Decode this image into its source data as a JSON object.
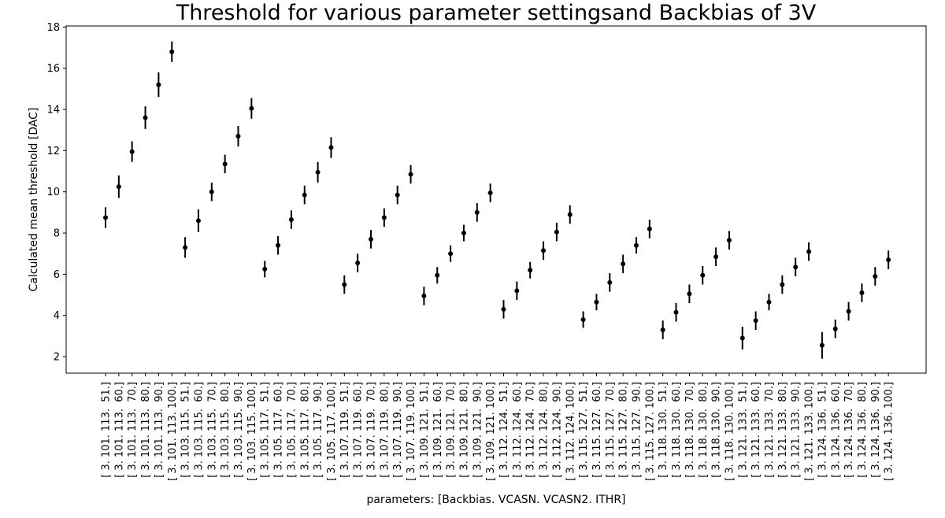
{
  "chart_data": {
    "type": "scatter",
    "title": "Threshold for various parameter settingsand Backbias of 3V",
    "xlabel": "parameters: [Backbias. VCASN. VCASN2. ITHR]",
    "ylabel": "Calculated mean threshold [DAC]",
    "ylim": [
      1.2,
      18.05
    ],
    "yticks": [
      2,
      4,
      6,
      8,
      10,
      12,
      14,
      16,
      18
    ],
    "grid": false,
    "categories": [
      "[ 3. 101. 113.  51.]",
      "[ 3. 101. 113.  60.]",
      "[ 3. 101. 113.  70.]",
      "[ 3. 101. 113.  80.]",
      "[ 3. 101. 113.  90.]",
      "[ 3. 101. 113. 100.]",
      "[ 3. 103. 115.  51.]",
      "[ 3. 103. 115.  60.]",
      "[ 3. 103. 115.  70.]",
      "[ 3. 103. 115.  80.]",
      "[ 3. 103. 115.  90.]",
      "[ 3. 103. 115. 100.]",
      "[ 3. 105. 117.  51.]",
      "[ 3. 105. 117.  60.]",
      "[ 3. 105. 117.  70.]",
      "[ 3. 105. 117.  80.]",
      "[ 3. 105. 117.  90.]",
      "[ 3. 105. 117. 100.]",
      "[ 3. 107. 119.  51.]",
      "[ 3. 107. 119.  60.]",
      "[ 3. 107. 119.  70.]",
      "[ 3. 107. 119.  80.]",
      "[ 3. 107. 119.  90.]",
      "[ 3. 107. 119. 100.]",
      "[ 3. 109. 121.  51.]",
      "[ 3. 109. 121.  60.]",
      "[ 3. 109. 121.  70.]",
      "[ 3. 109. 121.  80.]",
      "[ 3. 109. 121.  90.]",
      "[ 3. 109. 121. 100.]",
      "[ 3. 112. 124.  51.]",
      "[ 3. 112. 124.  60.]",
      "[ 3. 112. 124.  70.]",
      "[ 3. 112. 124.  80.]",
      "[ 3. 112. 124.  90.]",
      "[ 3. 112. 124. 100.]",
      "[ 3. 115. 127.  51.]",
      "[ 3. 115. 127.  60.]",
      "[ 3. 115. 127.  70.]",
      "[ 3. 115. 127.  80.]",
      "[ 3. 115. 127.  90.]",
      "[ 3. 115. 127. 100.]",
      "[ 3. 118. 130.  51.]",
      "[ 3. 118. 130.  60.]",
      "[ 3. 118. 130.  70.]",
      "[ 3. 118. 130.  80.]",
      "[ 3. 118. 130.  90.]",
      "[ 3. 118. 130. 100.]",
      "[ 3. 121. 133.  51.]",
      "[ 3. 121. 133.  60.]",
      "[ 3. 121. 133.  70.]",
      "[ 3. 121. 133.  80.]",
      "[ 3. 121. 133.  90.]",
      "[ 3. 121. 133. 100.]",
      "[ 3. 124. 136.  51.]",
      "[ 3. 124. 136.  60.]",
      "[ 3. 124. 136.  70.]",
      "[ 3. 124. 136.  80.]",
      "[ 3. 124. 136.  90.]",
      "[ 3. 124. 136. 100.]"
    ],
    "values": [
      8.75,
      10.25,
      11.95,
      13.6,
      15.2,
      16.8,
      7.3,
      8.6,
      10.0,
      11.35,
      12.7,
      14.05,
      6.25,
      7.4,
      8.65,
      9.85,
      10.95,
      12.15,
      5.5,
      6.55,
      7.7,
      8.75,
      9.85,
      10.85,
      4.95,
      5.95,
      7.0,
      8.0,
      9.0,
      9.95,
      4.3,
      5.2,
      6.2,
      7.15,
      8.05,
      8.9,
      3.8,
      4.65,
      5.6,
      6.5,
      7.4,
      8.2,
      3.3,
      4.15,
      5.05,
      5.95,
      6.85,
      7.65,
      2.9,
      3.75,
      4.65,
      5.5,
      6.35,
      7.1,
      2.55,
      3.35,
      4.2,
      5.1,
      5.9,
      6.7
    ],
    "errors": [
      0.5,
      0.55,
      0.5,
      0.55,
      0.6,
      0.5,
      0.5,
      0.55,
      0.45,
      0.45,
      0.5,
      0.5,
      0.4,
      0.45,
      0.45,
      0.45,
      0.5,
      0.5,
      0.45,
      0.45,
      0.45,
      0.45,
      0.45,
      0.45,
      0.45,
      0.4,
      0.4,
      0.4,
      0.45,
      0.45,
      0.45,
      0.45,
      0.4,
      0.45,
      0.45,
      0.45,
      0.4,
      0.4,
      0.45,
      0.45,
      0.4,
      0.45,
      0.45,
      0.45,
      0.45,
      0.45,
      0.45,
      0.45,
      0.55,
      0.45,
      0.4,
      0.45,
      0.45,
      0.45,
      0.65,
      0.45,
      0.45,
      0.45,
      0.45,
      0.45
    ]
  }
}
